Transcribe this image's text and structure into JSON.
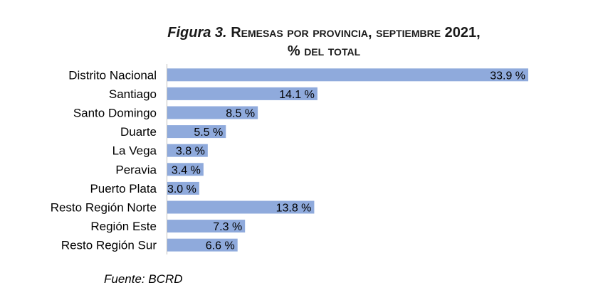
{
  "title": {
    "figure_label": "Figura 3.",
    "line1_rest": "Remesas por provincia, septiembre 2021,",
    "line2": "% del total"
  },
  "source": "Fuente: BCRD",
  "chart_data": {
    "type": "bar",
    "orientation": "horizontal",
    "title": "Figura 3. Remesas por provincia, septiembre 2021, % del total",
    "categories": [
      "Distrito Nacional",
      "Santiago",
      "Santo Domingo",
      "Duarte",
      "La Vega",
      "Peravia",
      "Puerto Plata",
      "Resto Región Norte",
      "Región Este",
      "Resto Región Sur"
    ],
    "values": [
      33.9,
      14.1,
      8.5,
      5.5,
      3.8,
      3.4,
      3.0,
      13.8,
      7.3,
      6.6
    ],
    "data_labels": [
      "33.9 %",
      "14.1 %",
      "8.5 %",
      "5.5 %",
      "3.8 %",
      "3.4 %",
      "3.0 %",
      "13.8 %",
      "7.3 %",
      "6.6 %"
    ],
    "xlim": [
      0,
      34.5
    ],
    "grid": false,
    "legend": "none",
    "bar_color": "#8faadc"
  }
}
